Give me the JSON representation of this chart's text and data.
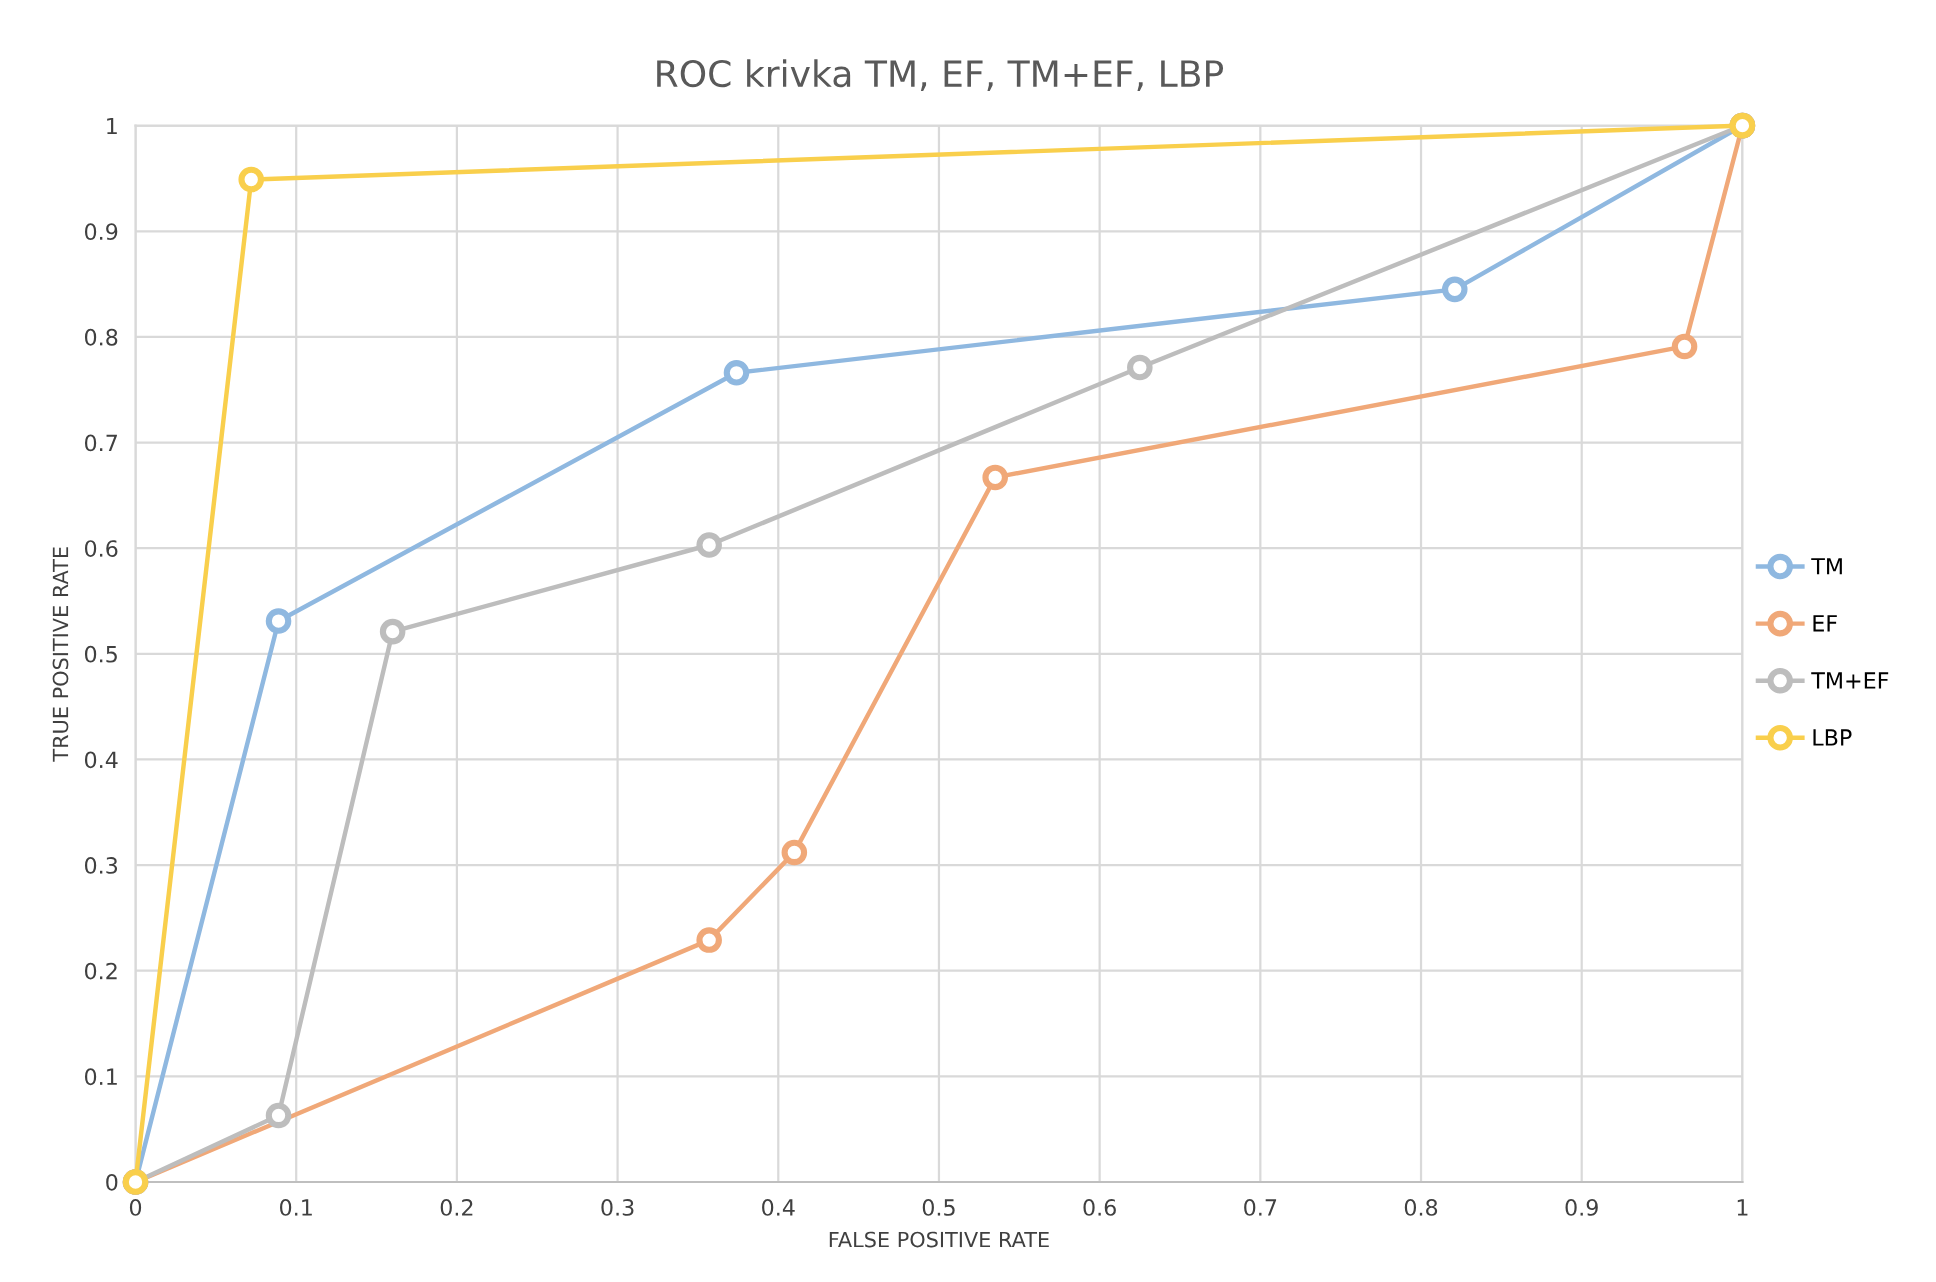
{
  "chart_data": {
    "type": "line",
    "title": "ROC krivka TM, EF, TM+EF, LBP",
    "xlabel": "FALSE POSITIVE RATE",
    "ylabel": "TRUE POSITIVE RATE",
    "series": [
      {
        "name": "TM",
        "color": "#8fb8e0",
        "x": [
          0,
          0.089,
          0.374,
          0.821,
          1
        ],
        "values": [
          0,
          0.531,
          0.766,
          0.845,
          1
        ]
      },
      {
        "name": "EF",
        "color": "#f0a878",
        "x": [
          0,
          0.357,
          0.41,
          0.535,
          0.964,
          1
        ],
        "values": [
          0,
          0.229,
          0.312,
          0.667,
          0.791,
          1
        ]
      },
      {
        "name": "TM+EF",
        "color": "#bdbdbd",
        "x": [
          0,
          0.089,
          0.16,
          0.357,
          0.625,
          1
        ],
        "values": [
          0,
          0.063,
          0.521,
          0.603,
          0.771,
          1
        ]
      },
      {
        "name": "LBP",
        "color": "#f9cf4c",
        "x": [
          0,
          0.072,
          1
        ],
        "values": [
          0,
          0.949,
          1
        ]
      }
    ],
    "xlim": [
      0,
      1
    ],
    "ylim": [
      0,
      1
    ],
    "xticks": [
      0,
      0.1,
      0.2,
      0.3,
      0.4,
      0.5,
      0.6,
      0.7,
      0.8,
      0.9,
      1
    ],
    "yticks": [
      0,
      0.1,
      0.2,
      0.3,
      0.4,
      0.5,
      0.6,
      0.7,
      0.8,
      0.9,
      1
    ],
    "grid": true,
    "legend": "right",
    "marker": "circle",
    "line_style": "solid"
  }
}
